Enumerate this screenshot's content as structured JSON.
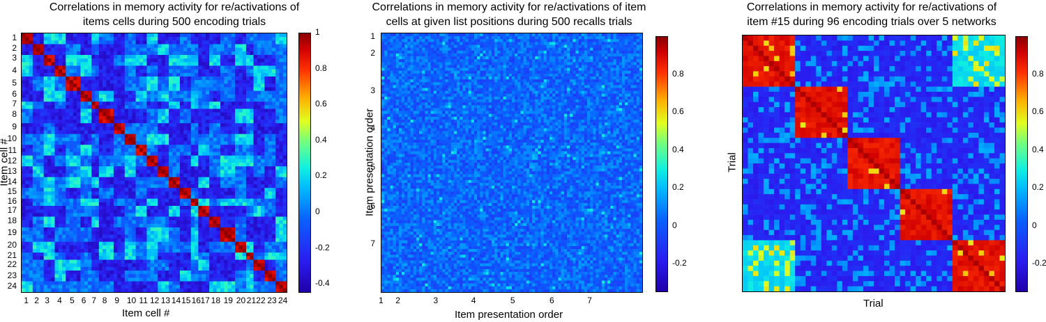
{
  "colors": {
    "colormap": [
      "#2000a8",
      "#0a60ff",
      "#10f0e0",
      "#e0ff20",
      "#ff3000",
      "#8a0000"
    ]
  },
  "chart_data": [
    {
      "type": "heatmap",
      "title_lines": [
        "Correlations in memory activity for re/activations of",
        "items cells during 500 encoding trials"
      ],
      "xlabel": "Item cell #",
      "ylabel": "Item cell #",
      "x_ticks": [
        "1",
        "2",
        "3",
        "4",
        "5",
        "6",
        "7",
        "8",
        "9",
        "10",
        "11",
        "12",
        "13",
        "14",
        "15",
        "16",
        "17",
        "18",
        "19",
        "20",
        "21",
        "22",
        "23",
        "24"
      ],
      "y_ticks": [
        "1",
        "2",
        "3",
        "4",
        "5",
        "6",
        "7",
        "8",
        "9",
        "10",
        "11",
        "12",
        "13",
        "14",
        "15",
        "16",
        "17",
        "18",
        "19",
        "20",
        "21",
        "22",
        "23",
        "24"
      ],
      "colorbar_ticks": [
        "1",
        "0.8",
        "0.6",
        "0.4",
        "0.2",
        "0",
        "-0.2",
        "-0.4"
      ],
      "clim": [
        -0.45,
        1
      ],
      "blocks": 24
    },
    {
      "type": "heatmap",
      "title_lines": [
        "Correlations in memory activity for re/activations of item",
        "cells at given list positions during 500 recalls trials"
      ],
      "xlabel": "Item presentation order",
      "ylabel": "Item presentation order",
      "x_ticks": [
        "1",
        "2",
        "3",
        "4",
        "5",
        "6",
        "7"
      ],
      "y_ticks": [
        "1",
        "2",
        "3",
        "4",
        "5",
        "6",
        "7"
      ],
      "colorbar_ticks": [
        "0.8",
        "0.6",
        "0.4",
        "0.2",
        "0",
        "-0.2"
      ],
      "clim": [
        -0.35,
        1
      ]
    },
    {
      "type": "heatmap",
      "title_lines": [
        "Correlations in memory activity for re/activations of",
        "item #15 during 96 encoding trials over 5 networks"
      ],
      "xlabel": "Trial",
      "ylabel": "Trial",
      "colorbar_ticks": [
        "0.8",
        "0.6",
        "0.4",
        "0.2",
        "0",
        "-0.2"
      ],
      "clim": [
        -0.35,
        1
      ],
      "blocks": 5
    }
  ]
}
